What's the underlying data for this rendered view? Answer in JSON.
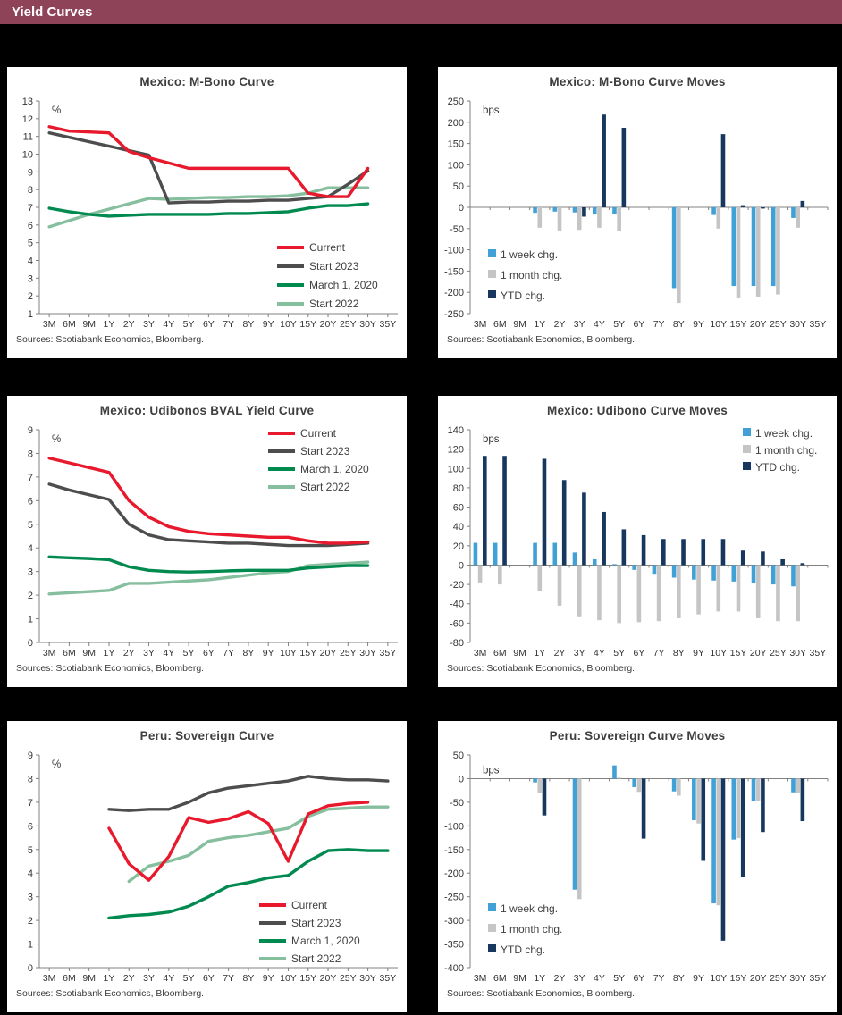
{
  "header": {
    "title": "Yield Curves",
    "bg_color": "#8E4358",
    "text_color": "#FFFFFF"
  },
  "page": {
    "bg_color": "#000000",
    "panel_bg": "#FFFFFF"
  },
  "palette": {
    "current": "#E8192C",
    "start_2023": "#4D4D4D",
    "march_2020": "#008A50",
    "start_2022": "#86BF9E",
    "one_week": "#41A0D5",
    "one_month": "#C5C5C5",
    "ytd": "#17375E",
    "axis": "#808080"
  },
  "chart_data": [
    {
      "type": "line",
      "title": "Mexico: M-Bono Curve",
      "unit": "%",
      "ylim": [
        1,
        13
      ],
      "ytick": 1,
      "grid": false,
      "legend_position": "right-lower",
      "categories": [
        "3M",
        "6M",
        "9M",
        "1Y",
        "2Y",
        "3Y",
        "4Y",
        "5Y",
        "6Y",
        "7Y",
        "8Y",
        "9Y",
        "10Y",
        "15Y",
        "20Y",
        "25Y",
        "30Y",
        "35Y"
      ],
      "series": [
        {
          "name": "Current",
          "color": "#E8192C",
          "values": [
            11.55,
            11.3,
            11.25,
            11.2,
            10.15,
            9.8,
            9.5,
            9.2,
            9.2,
            9.2,
            9.2,
            9.2,
            9.2,
            7.8,
            7.6,
            7.6,
            9.2,
            null
          ]
        },
        {
          "name": "Start 2023",
          "color": "#4D4D4D",
          "values": [
            11.2,
            10.95,
            10.7,
            10.45,
            10.2,
            9.95,
            7.25,
            7.3,
            7.3,
            7.35,
            7.35,
            7.4,
            7.4,
            7.5,
            7.6,
            8.3,
            9.05,
            null
          ]
        },
        {
          "name": "March 1, 2020",
          "color": "#008A50",
          "values": [
            6.95,
            6.75,
            6.6,
            6.5,
            6.55,
            6.6,
            6.6,
            6.6,
            6.6,
            6.65,
            6.65,
            6.7,
            6.75,
            6.95,
            7.1,
            7.1,
            7.2,
            null
          ]
        },
        {
          "name": "Start 2022",
          "color": "#86BF9E",
          "values": [
            5.9,
            6.25,
            6.6,
            6.9,
            7.2,
            7.5,
            7.45,
            7.5,
            7.55,
            7.55,
            7.6,
            7.6,
            7.65,
            7.8,
            8.1,
            8.1,
            8.1,
            null
          ]
        }
      ],
      "sources": "Sources: Scotiabank Economics, Bloomberg."
    },
    {
      "type": "bar",
      "title": "Mexico: M-Bono Curve Moves",
      "unit": "bps",
      "ylim": [
        -250,
        250
      ],
      "ytick": 50,
      "grid": false,
      "legend_position": "bottom-left",
      "categories": [
        "3M",
        "6M",
        "9M",
        "1Y",
        "2Y",
        "3Y",
        "4Y",
        "5Y",
        "6Y",
        "7Y",
        "8Y",
        "9Y",
        "10Y",
        "15Y",
        "20Y",
        "25Y",
        "30Y",
        "35Y"
      ],
      "series": [
        {
          "name": "1 week chg.",
          "color": "#41A0D5",
          "values": [
            0,
            0,
            0,
            -13,
            -10,
            -12,
            -17,
            -15,
            0,
            0,
            -190,
            0,
            -18,
            -185,
            -185,
            -185,
            -25,
            0
          ]
        },
        {
          "name": "1 month chg.",
          "color": "#C5C5C5",
          "values": [
            0,
            0,
            0,
            -48,
            -55,
            -53,
            -48,
            -55,
            0,
            0,
            -225,
            0,
            -50,
            -212,
            -210,
            -205,
            -48,
            0
          ]
        },
        {
          "name": "YTD chg.",
          "color": "#17375E",
          "values": [
            0,
            0,
            0,
            0,
            0,
            -22,
            218,
            187,
            0,
            0,
            0,
            0,
            172,
            5,
            -3,
            0,
            15,
            0
          ]
        }
      ],
      "sources": "Sources: Scotiabank Economics, Bloomberg."
    },
    {
      "type": "line",
      "title": "Mexico: Udibonos BVAL Yield Curve",
      "unit": "%",
      "ylim": [
        0,
        9
      ],
      "ytick": 1,
      "grid": false,
      "legend_position": "top-right",
      "categories": [
        "3M",
        "6M",
        "9M",
        "1Y",
        "2Y",
        "3Y",
        "4Y",
        "5Y",
        "6Y",
        "7Y",
        "8Y",
        "9Y",
        "10Y",
        "15Y",
        "20Y",
        "25Y",
        "30Y",
        "35Y"
      ],
      "series": [
        {
          "name": "Current",
          "color": "#E8192C",
          "values": [
            7.8,
            7.6,
            7.4,
            7.2,
            6.0,
            5.3,
            4.9,
            4.7,
            4.6,
            4.55,
            4.5,
            4.45,
            4.45,
            4.3,
            4.2,
            4.2,
            4.25,
            null
          ]
        },
        {
          "name": "Start 2023",
          "color": "#4D4D4D",
          "values": [
            6.7,
            6.45,
            6.25,
            6.05,
            5.0,
            4.55,
            4.35,
            4.3,
            4.25,
            4.2,
            4.2,
            4.15,
            4.1,
            4.1,
            4.1,
            4.15,
            4.2,
            null
          ]
        },
        {
          "name": "March 1, 2020",
          "color": "#008A50",
          "values": [
            3.62,
            3.58,
            3.55,
            3.5,
            3.2,
            3.05,
            3.0,
            2.98,
            3.0,
            3.03,
            3.05,
            3.05,
            3.05,
            3.15,
            3.2,
            3.25,
            3.25,
            null
          ]
        },
        {
          "name": "Start 2022",
          "color": "#86BF9E",
          "values": [
            2.05,
            2.1,
            2.15,
            2.2,
            2.5,
            2.5,
            2.55,
            2.6,
            2.65,
            2.75,
            2.85,
            2.95,
            3.0,
            3.25,
            3.3,
            3.35,
            3.4,
            null
          ]
        }
      ],
      "sources": "Sources: Scotiabank Economics, Bloomberg."
    },
    {
      "type": "bar",
      "title": "Mexico: Udibono Curve Moves",
      "unit": "bps",
      "ylim": [
        -80,
        140
      ],
      "ytick": 20,
      "grid": false,
      "legend_position": "top-right",
      "categories": [
        "3M",
        "6M",
        "9M",
        "1Y",
        "2Y",
        "3Y",
        "4Y",
        "5Y",
        "6Y",
        "7Y",
        "8Y",
        "9Y",
        "10Y",
        "15Y",
        "20Y",
        "25Y",
        "30Y",
        "35Y"
      ],
      "series": [
        {
          "name": "1 week chg.",
          "color": "#41A0D5",
          "values": [
            23,
            23,
            0,
            23,
            23,
            13,
            6,
            1,
            -5,
            -9,
            -13,
            -15,
            -16,
            -17,
            -19,
            -20,
            -22,
            0
          ]
        },
        {
          "name": "1 month chg.",
          "color": "#C5C5C5",
          "values": [
            -18,
            -20,
            0,
            -27,
            -42,
            -53,
            -57,
            -60,
            -59,
            -58,
            -55,
            -51,
            -48,
            -48,
            -55,
            -58,
            -58,
            0
          ]
        },
        {
          "name": "YTD chg.",
          "color": "#17375E",
          "values": [
            113,
            113,
            0,
            110,
            88,
            75,
            55,
            37,
            31,
            27,
            27,
            27,
            27,
            15,
            14,
            6,
            2,
            0
          ]
        }
      ],
      "sources": "Sources: Scotiabank Economics, Bloomberg."
    },
    {
      "type": "line",
      "title": "Peru: Sovereign Curve",
      "unit": "%",
      "ylim": [
        0,
        9
      ],
      "ytick": 1,
      "grid": false,
      "legend_position": "bottom-right",
      "categories": [
        "3M",
        "6M",
        "9M",
        "1Y",
        "2Y",
        "3Y",
        "4Y",
        "5Y",
        "6Y",
        "7Y",
        "8Y",
        "9Y",
        "10Y",
        "15Y",
        "20Y",
        "25Y",
        "30Y",
        "35Y"
      ],
      "series": [
        {
          "name": "Current",
          "color": "#E8192C",
          "values": [
            null,
            null,
            null,
            5.9,
            4.4,
            3.7,
            4.7,
            6.35,
            6.15,
            6.3,
            6.6,
            6.1,
            4.5,
            6.5,
            6.85,
            6.95,
            7.0,
            null
          ]
        },
        {
          "name": "Start 2023",
          "color": "#4D4D4D",
          "values": [
            null,
            null,
            null,
            6.7,
            6.65,
            6.7,
            6.7,
            7.0,
            7.4,
            7.6,
            7.7,
            7.8,
            7.9,
            8.1,
            8.0,
            7.95,
            7.95,
            7.9
          ]
        },
        {
          "name": "March 1, 2020",
          "color": "#008A50",
          "values": [
            null,
            null,
            null,
            2.1,
            2.2,
            2.25,
            2.35,
            2.6,
            3.0,
            3.45,
            3.6,
            3.8,
            3.9,
            4.5,
            4.95,
            5.0,
            4.95,
            4.95
          ]
        },
        {
          "name": "Start 2022",
          "color": "#86BF9E",
          "values": [
            null,
            null,
            null,
            null,
            3.65,
            4.3,
            4.5,
            4.75,
            5.35,
            5.5,
            5.6,
            5.75,
            5.9,
            6.4,
            6.7,
            6.75,
            6.8,
            6.8
          ]
        }
      ],
      "sources": "Sources: Scotiabank Economics, Bloomberg."
    },
    {
      "type": "bar",
      "title": "Peru: Sovereign Curve Moves",
      "unit": "bps",
      "ylim": [
        -400,
        50
      ],
      "ytick": 50,
      "grid": false,
      "legend_position": "bottom-left",
      "categories": [
        "3M",
        "6M",
        "9M",
        "1Y",
        "2Y",
        "3Y",
        "4Y",
        "5Y",
        "6Y",
        "7Y",
        "8Y",
        "9Y",
        "10Y",
        "15Y",
        "20Y",
        "25Y",
        "30Y",
        "35Y"
      ],
      "series": [
        {
          "name": "1 week chg.",
          "color": "#41A0D5",
          "values": [
            0,
            0,
            0,
            -8,
            0,
            -235,
            0,
            28,
            -18,
            0,
            -27,
            -88,
            -264,
            -129,
            -47,
            0,
            -29,
            0
          ]
        },
        {
          "name": "1 month chg.",
          "color": "#C5C5C5",
          "values": [
            0,
            0,
            0,
            -30,
            0,
            -255,
            0,
            2,
            -28,
            0,
            -36,
            -95,
            -268,
            -126,
            -47,
            0,
            -30,
            0
          ]
        },
        {
          "name": "YTD chg.",
          "color": "#17375E",
          "values": [
            0,
            0,
            0,
            -78,
            0,
            0,
            0,
            0,
            -127,
            0,
            0,
            -174,
            -343,
            -208,
            -113,
            0,
            -90,
            0
          ]
        }
      ],
      "sources": "Sources: Scotiabank Economics, Bloomberg."
    }
  ]
}
